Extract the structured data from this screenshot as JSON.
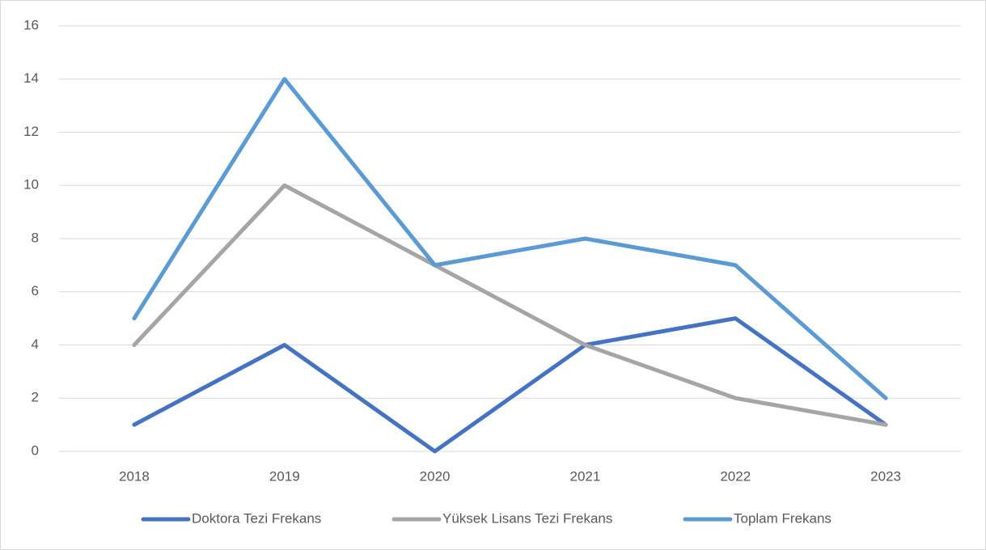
{
  "chart_data": {
    "type": "line",
    "categories": [
      "2018",
      "2019",
      "2020",
      "2021",
      "2022",
      "2023"
    ],
    "series": [
      {
        "name": "Doktora Tezi Frekans",
        "color": "#4472c4",
        "values": [
          1,
          4,
          0,
          4,
          5,
          1
        ]
      },
      {
        "name": "Yüksek Lisans Tezi Frekans",
        "color": "#a5a5a5",
        "values": [
          4,
          10,
          7,
          4,
          2,
          1
        ]
      },
      {
        "name": "Toplam Frekans",
        "color": "#5b9bd5",
        "values": [
          5,
          14,
          7,
          8,
          7,
          2
        ]
      }
    ],
    "ylim": [
      0,
      16
    ],
    "yticks": [
      0,
      2,
      4,
      6,
      8,
      10,
      12,
      14,
      16
    ],
    "grid": true,
    "legend": "bottom"
  }
}
